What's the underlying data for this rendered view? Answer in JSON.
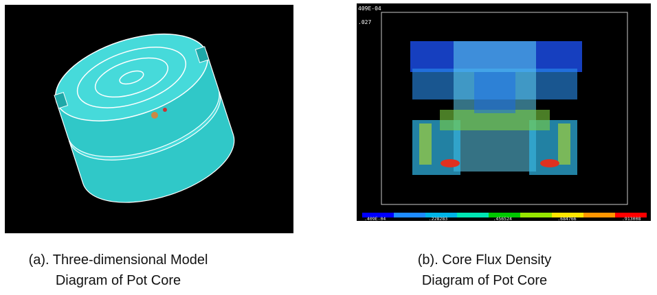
{
  "figures": [
    {
      "caption_lines": [
        "(a). Three-dimensional Model",
        "Diagram of Pot Core"
      ]
    },
    {
      "overlay_text": [
        "409E-04",
        ".027"
      ],
      "colorbar_labels": [
        ".409E-04",
        ".228283",
        ".456524",
        ".684766",
        ".913008"
      ],
      "caption_lines": [
        "(b). Core Flux Density",
        "Diagram of Pot Core"
      ]
    }
  ]
}
